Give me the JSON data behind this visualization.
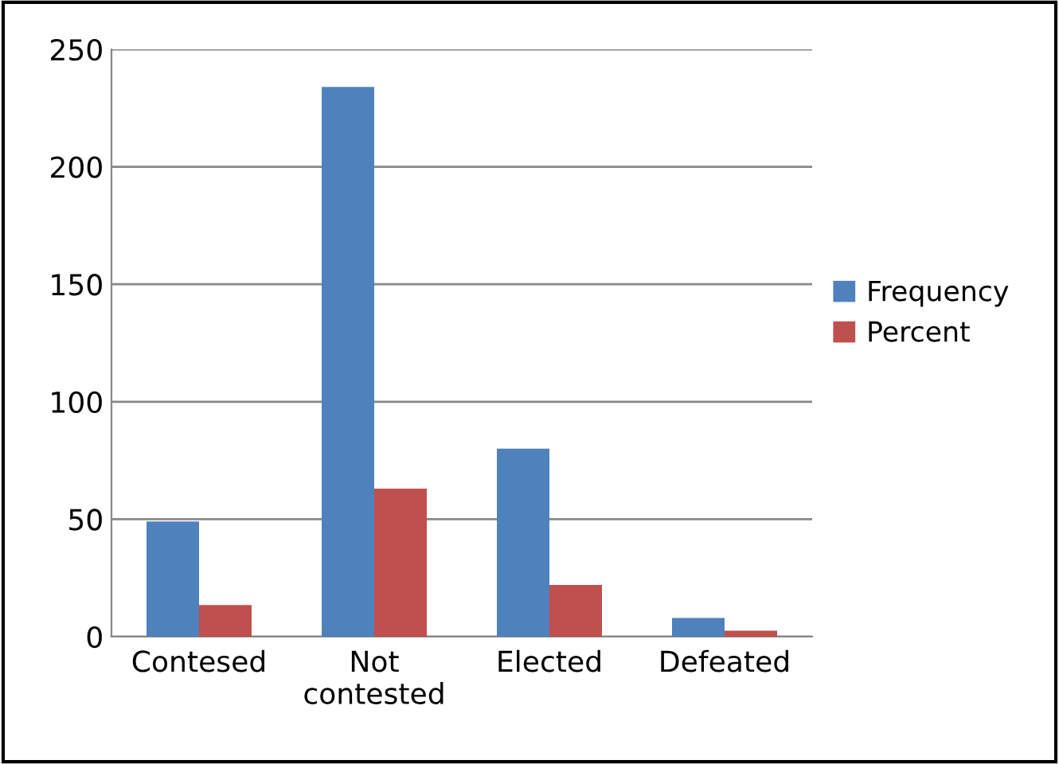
{
  "chart_data": {
    "type": "bar",
    "categories": [
      "Contesed",
      "Not\ncontested",
      "Elected",
      "Defeated"
    ],
    "series": [
      {
        "name": "Frequency",
        "color": "#4f81bd",
        "values": [
          49,
          234,
          80,
          8
        ]
      },
      {
        "name": "Percent",
        "color": "#c0504d",
        "values": [
          13.5,
          63,
          22,
          2.5
        ]
      }
    ],
    "ylim": [
      0,
      250
    ],
    "yticks": [
      0,
      50,
      100,
      150,
      200,
      250
    ],
    "grid": "y",
    "legend": "right"
  }
}
